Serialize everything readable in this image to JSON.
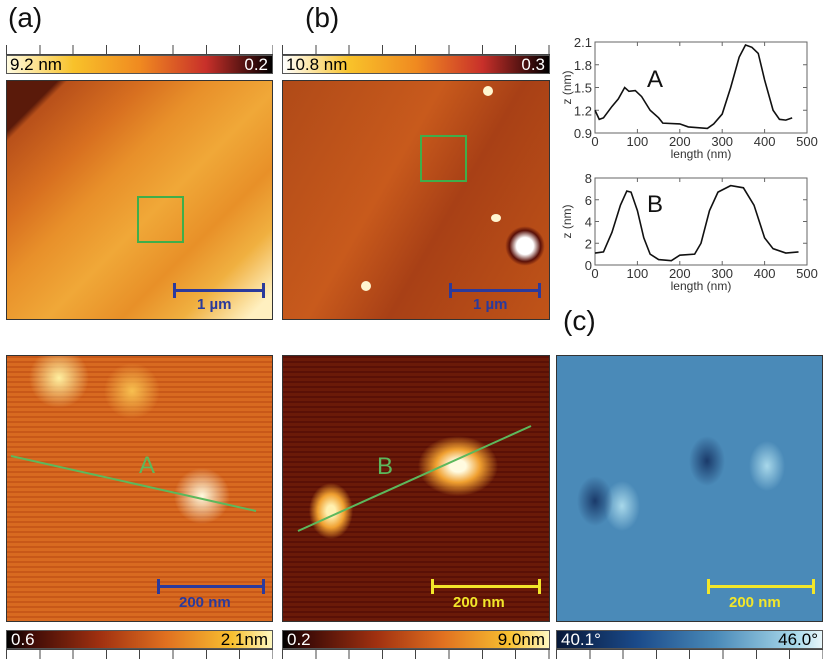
{
  "panels": {
    "a": "(a)",
    "b": "(b)",
    "c": "(c)"
  },
  "colorbars": {
    "top_a": {
      "max": "9.2 nm",
      "min": "0.2"
    },
    "top_b": {
      "max": "10.8 nm",
      "min": "0.3"
    },
    "bottom_a": {
      "min": "0.6",
      "max": "2.1nm"
    },
    "bottom_b": {
      "min": "0.2",
      "max": "9.0nm"
    },
    "bottom_c": {
      "min": "40.1°",
      "max": "46.0°"
    }
  },
  "scalebars": {
    "top_a": "1 µm",
    "top_b": "1 µm",
    "bottom_a": "200 nm",
    "bottom_b": "200 nm",
    "bottom_c": "200 nm"
  },
  "line_labels": {
    "a": "A",
    "b": "B"
  },
  "colors": {
    "scalebar_blue": "#2b3a9c",
    "scalebar_yellow": "#f2e62a",
    "line_green": "#5cb85c"
  },
  "chart_data": [
    {
      "type": "line",
      "title": "A",
      "xlabel": "length (nm)",
      "ylabel": "z (nm)",
      "xlim": [
        0,
        500
      ],
      "ylim": [
        0.9,
        2.1
      ],
      "xticks": [
        0,
        100,
        200,
        300,
        400,
        500
      ],
      "yticks": [
        0.9,
        1.2,
        1.5,
        1.8,
        2.1
      ],
      "x": [
        0,
        10,
        20,
        40,
        55,
        70,
        80,
        95,
        110,
        130,
        150,
        160,
        200,
        220,
        265,
        280,
        300,
        320,
        340,
        355,
        370,
        385,
        400,
        420,
        435,
        450,
        465
      ],
      "y": [
        1.2,
        1.08,
        1.1,
        1.25,
        1.35,
        1.5,
        1.45,
        1.46,
        1.38,
        1.2,
        1.1,
        1.03,
        1.02,
        0.98,
        0.96,
        1.02,
        1.15,
        1.5,
        1.9,
        2.06,
        2.03,
        1.95,
        1.6,
        1.2,
        1.08,
        1.07,
        1.1
      ]
    },
    {
      "type": "line",
      "title": "B",
      "xlabel": "length (nm)",
      "ylabel": "z (nm)",
      "xlim": [
        0,
        500
      ],
      "ylim": [
        0,
        8
      ],
      "xticks": [
        0,
        100,
        200,
        300,
        400,
        500
      ],
      "yticks": [
        0,
        2,
        4,
        6,
        8
      ],
      "x": [
        0,
        20,
        40,
        60,
        75,
        85,
        100,
        115,
        130,
        150,
        180,
        200,
        235,
        250,
        270,
        290,
        320,
        350,
        375,
        400,
        420,
        450,
        480
      ],
      "y": [
        1.1,
        1.2,
        3,
        5.5,
        6.8,
        6.7,
        5,
        2.5,
        1,
        0.5,
        0.4,
        0.9,
        1,
        2,
        5,
        6.7,
        7.3,
        7.1,
        5.5,
        2.5,
        1.5,
        1.1,
        1.2
      ]
    }
  ]
}
